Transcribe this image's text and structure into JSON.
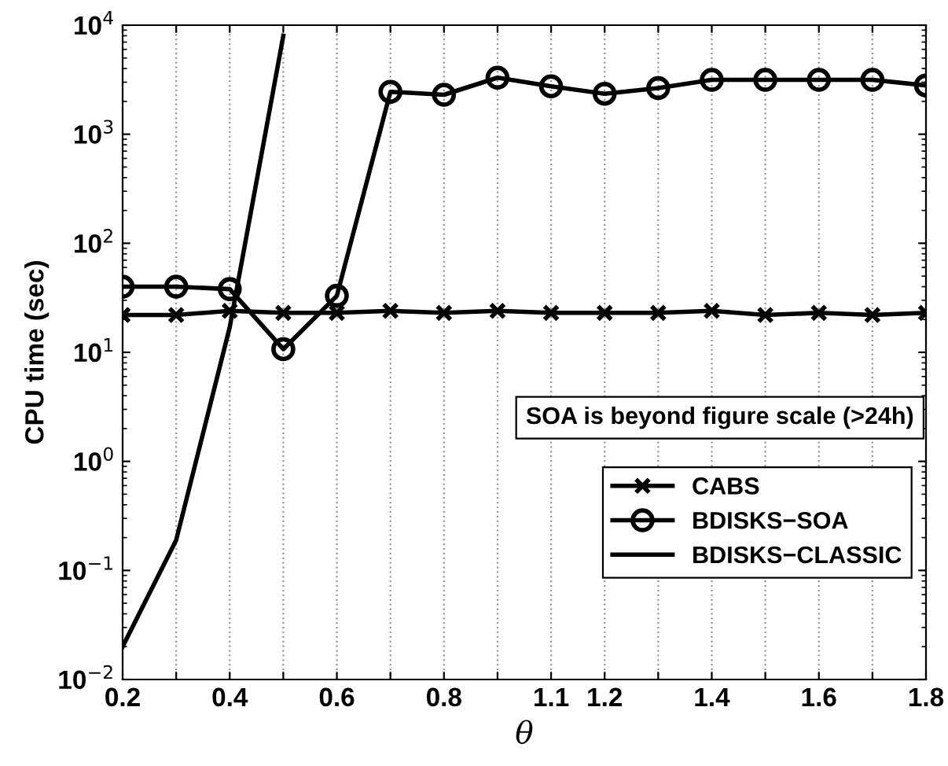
{
  "chart_data": {
    "type": "line",
    "xlabel": "θ",
    "ylabel": "CPU time (sec)",
    "categories": [
      "0.2",
      null,
      "0.4",
      null,
      "0.6",
      null,
      "0.8",
      null,
      "1.1",
      "1.2",
      null,
      "1.4",
      null,
      "1.6",
      null,
      "1.8"
    ],
    "series": [
      {
        "name": "CABS",
        "color": "#000000",
        "marker": "cross",
        "values": [
          22,
          22,
          24,
          23,
          23,
          24,
          23,
          24,
          23,
          23,
          23,
          24,
          22,
          23,
          22,
          23
        ]
      },
      {
        "name": "BDISKS−SOA",
        "color": "#000000",
        "marker": "circle",
        "values": [
          40,
          40,
          38,
          10.7,
          33,
          2450,
          2300,
          3300,
          2750,
          2350,
          2650,
          3150,
          3150,
          3150,
          3150,
          2800
        ]
      },
      {
        "name": "BDISKS−CLASSIC",
        "color": "#000000",
        "marker": "none",
        "values": [
          0.02,
          0.19,
          17,
          8000,
          null,
          null,
          null,
          null,
          null,
          null,
          null,
          null,
          null,
          null,
          null,
          null
        ]
      }
    ],
    "log": "y",
    "ylim": [
      0.01,
      10000
    ],
    "yticks": [
      {
        "value": 0.01,
        "label": "10$^{−2}$"
      },
      {
        "value": 0.1,
        "label": "10$^{−1}$"
      },
      {
        "value": 1,
        "label": "10$^{0}$"
      },
      {
        "value": 10,
        "label": "10$^{1}$"
      },
      {
        "value": 100,
        "label": "10$^{2}$"
      },
      {
        "value": 1000,
        "label": "10$^{3}$"
      },
      {
        "value": 10000,
        "label": "10$^{4}$"
      }
    ],
    "grid": "x",
    "legend": "right",
    "line_style": "solid",
    "annotations": [
      "SOA is beyond figure scale (>24h)"
    ]
  }
}
